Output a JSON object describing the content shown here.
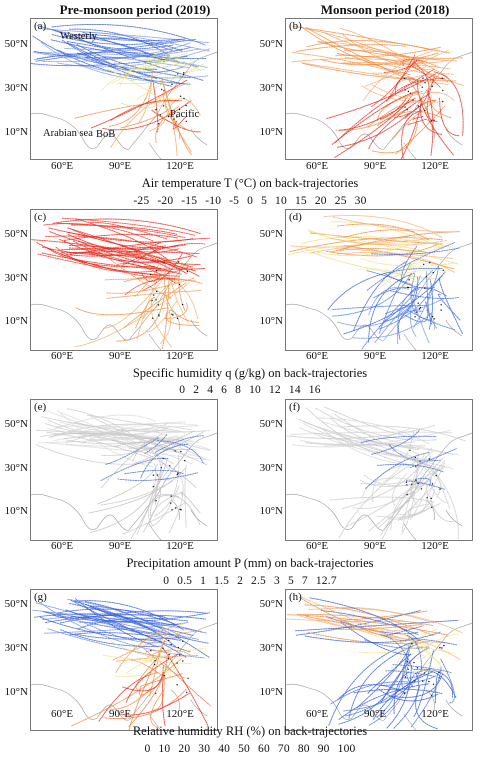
{
  "columns": {
    "left": "Pre-monsoon period (2019)",
    "right": "Monsoon period (2018)"
  },
  "axes": {
    "lat": [
      "50°N",
      "30°N",
      "10°N"
    ],
    "lon": [
      "60°E",
      "90°E",
      "120°E"
    ]
  },
  "panels": [
    {
      "label": "(a)",
      "palette": "temperature-pre"
    },
    {
      "label": "(b)",
      "palette": "temperature-mon"
    },
    {
      "label": "(c)",
      "palette": "humidity-pre"
    },
    {
      "label": "(d)",
      "palette": "humidity-mon"
    },
    {
      "label": "(e)",
      "palette": "precip-pre"
    },
    {
      "label": "(f)",
      "palette": "precip-mon"
    },
    {
      "label": "(g)",
      "palette": "rh-pre"
    },
    {
      "label": "(h)",
      "palette": "rh-mon"
    }
  ],
  "regions": {
    "westerly": "Westerly",
    "arabian": "Arabian sea",
    "bob": "BoB",
    "pacific": "Pacific"
  },
  "captions": {
    "t": "Air temperature T (°C) on back-trajectories",
    "q": "Specific humidity q (g/kg) on back-trajectories",
    "p": "Precipitation amount P (mm) on back-trajectories",
    "rh": "Relative humidity RH (%) on back-trajectories"
  },
  "scales": {
    "t": [
      "-25",
      "-20",
      "-15",
      "-10",
      "-5",
      "0",
      "5",
      "10",
      "15",
      "20",
      "25",
      "30"
    ],
    "q": [
      "0",
      "2",
      "4",
      "6",
      "8",
      "10",
      "12",
      "14",
      "16"
    ],
    "p": [
      "0",
      "0.5",
      "1",
      "1.5",
      "2",
      "2.5",
      "3",
      "5",
      "7",
      "12.7"
    ],
    "rh": [
      "0",
      "10",
      "20",
      "30",
      "40",
      "50",
      "60",
      "70",
      "80",
      "90",
      "100"
    ]
  },
  "colors": {
    "blue": "#3a63d8",
    "red": "#e8261c",
    "orange": "#f08a3c",
    "yellow": "#eedf7a",
    "gray": "#c8c8c8",
    "coast": "#9a9a9a"
  }
}
